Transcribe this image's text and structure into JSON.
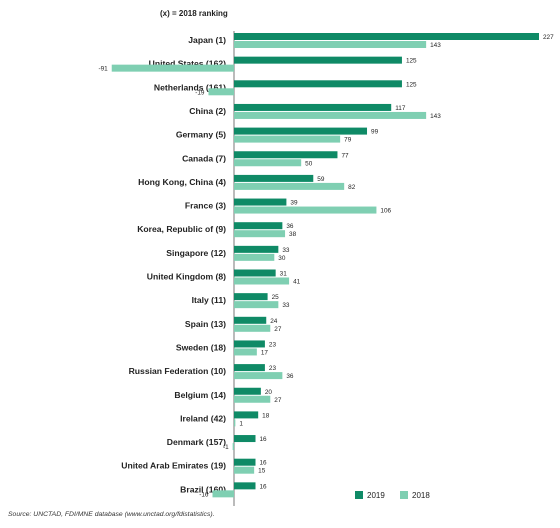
{
  "chart_data": {
    "type": "bar",
    "orientation": "horizontal",
    "note": "(x) = 2018  ranking",
    "categories": [
      "Japan (1)",
      "United States (162)",
      "Netherlands (161)",
      "China (2)",
      "Germany (5)",
      "Canada (7)",
      "Hong Kong, China (4)",
      "France (3)",
      "Korea, Republic of (9)",
      "Singapore (12)",
      "United Kingdom (8)",
      "Italy (11)",
      "Spain (13)",
      "Sweden (18)",
      "Russian Federation (10)",
      "Belgium (14)",
      "Ireland (42)",
      "Denmark (157)",
      "United Arab Emirates (19)",
      "Brazil (160)"
    ],
    "series": [
      {
        "name": "2019",
        "color": "#0f8a66",
        "values": [
          227,
          125,
          125,
          117,
          99,
          77,
          59,
          39,
          36,
          33,
          31,
          25,
          24,
          23,
          23,
          20,
          18,
          16,
          16,
          16
        ]
      },
      {
        "name": "2018",
        "color": "#7fcfb2",
        "values": [
          143,
          -91,
          -19,
          143,
          79,
          50,
          82,
          106,
          38,
          30,
          41,
          33,
          27,
          17,
          36,
          27,
          1,
          -1,
          15,
          -16
        ]
      }
    ],
    "legend_position": "bottom-right",
    "grid": false
  },
  "source": "Source:  UNCTAD, FDI/MNE database (www.unctad.org/fdistatistics)."
}
